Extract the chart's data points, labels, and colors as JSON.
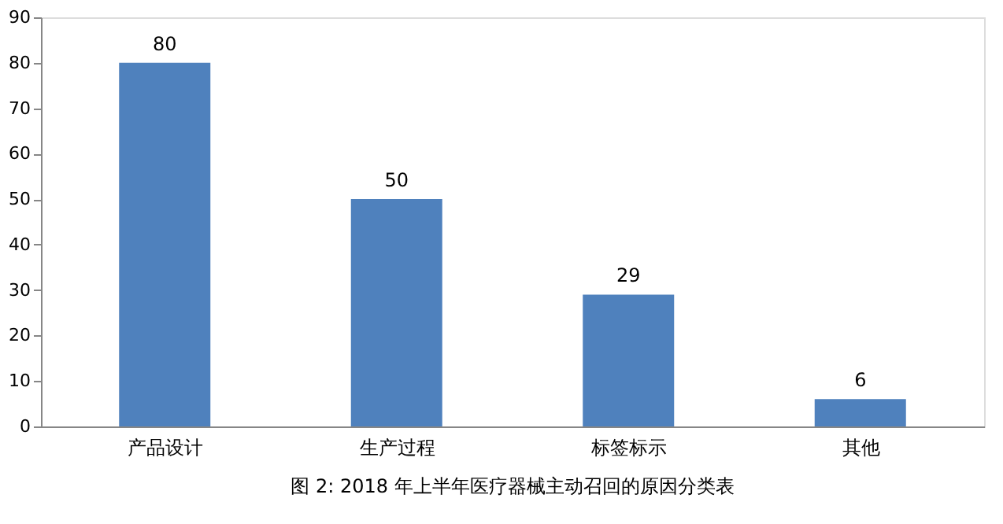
{
  "chart_data": {
    "type": "bar",
    "categories": [
      "产品设计",
      "生产过程",
      "标签标示",
      "其他"
    ],
    "values": [
      80,
      50,
      29,
      6
    ],
    "color": "#4f81bd",
    "ylim": [
      0,
      90
    ],
    "yticks": [
      0,
      10,
      20,
      30,
      40,
      50,
      60,
      70,
      80,
      90
    ],
    "grid": false,
    "data_labels": true,
    "annotations": [
      "图 2: 2018 年上半年医疗器械主动召回的原因分类表"
    ]
  }
}
